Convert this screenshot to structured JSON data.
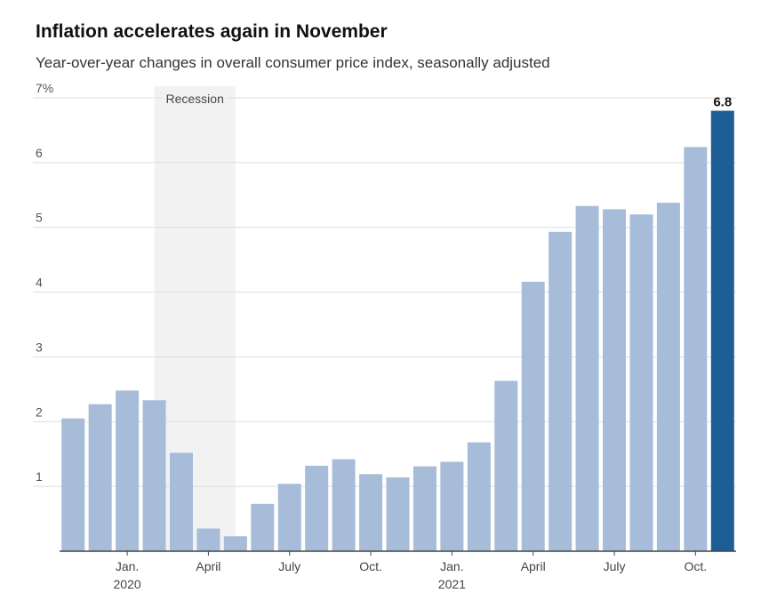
{
  "title": "Inflation accelerates again in November",
  "subtitle": "Year-over-year changes in overall consumer price index, seasonally adjusted",
  "chart_data": {
    "type": "bar",
    "title": "Inflation accelerates again in November",
    "subtitle": "Year-over-year changes in overall consumer price index, seasonally adjusted",
    "categories": [
      "Nov. 2019",
      "Dec. 2019",
      "Jan. 2020",
      "Feb. 2020",
      "Mar. 2020",
      "Apr. 2020",
      "May 2020",
      "Jun. 2020",
      "Jul. 2020",
      "Aug. 2020",
      "Sep. 2020",
      "Oct. 2020",
      "Nov. 2020",
      "Dec. 2020",
      "Jan. 2021",
      "Feb. 2021",
      "Mar. 2021",
      "Apr. 2021",
      "May 2021",
      "Jun. 2021",
      "Jul. 2021",
      "Aug. 2021",
      "Sep. 2021",
      "Oct. 2021",
      "Nov. 2021"
    ],
    "values": [
      2.05,
      2.27,
      2.48,
      2.33,
      1.52,
      0.35,
      0.23,
      0.73,
      1.04,
      1.32,
      1.42,
      1.19,
      1.14,
      1.31,
      1.38,
      1.68,
      2.63,
      4.16,
      4.93,
      5.33,
      5.28,
      5.2,
      5.38,
      6.24,
      6.8
    ],
    "highlight_index": 24,
    "highlight_label": "6.8",
    "ylim": [
      0,
      7
    ],
    "yticks": [
      1,
      2,
      3,
      4,
      5,
      6,
      7
    ],
    "ytick_labels": [
      "1",
      "2",
      "3",
      "4",
      "5",
      "6",
      "7%"
    ],
    "xticks": [
      {
        "index": 2,
        "label": "Jan.",
        "sublabel": "2020"
      },
      {
        "index": 5,
        "label": "April",
        "sublabel": ""
      },
      {
        "index": 8,
        "label": "July",
        "sublabel": ""
      },
      {
        "index": 11,
        "label": "Oct.",
        "sublabel": ""
      },
      {
        "index": 14,
        "label": "Jan.",
        "sublabel": "2021"
      },
      {
        "index": 17,
        "label": "April",
        "sublabel": ""
      },
      {
        "index": 20,
        "label": "July",
        "sublabel": ""
      },
      {
        "index": 23,
        "label": "Oct.",
        "sublabel": ""
      }
    ],
    "recession": {
      "start_index": 3.5,
      "end_index": 6.5,
      "label": "Recession"
    },
    "grid": true,
    "colors": {
      "bar": "#a6bcd9",
      "highlight": "#1d5e96",
      "recession": "#f2f2f2",
      "grid": "#dddddd",
      "axis": "#444444"
    }
  }
}
